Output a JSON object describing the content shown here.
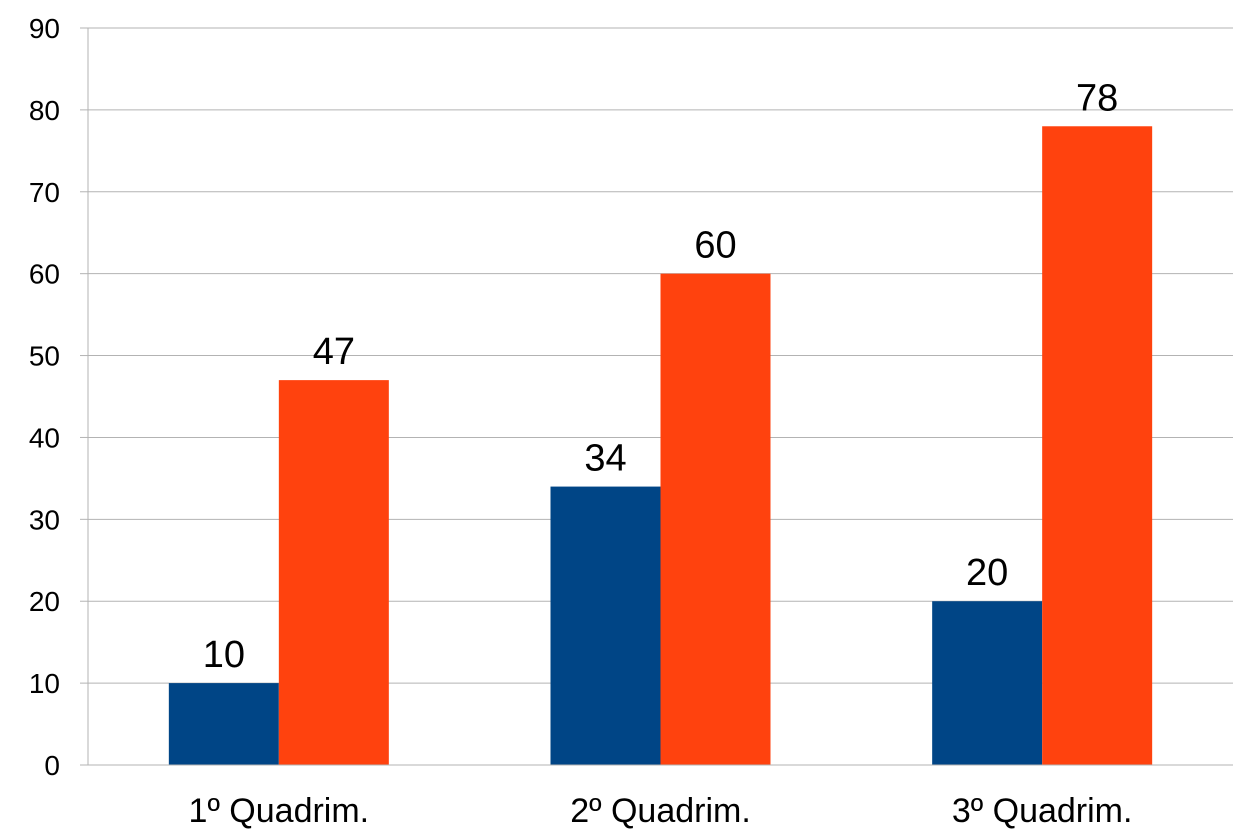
{
  "chart_data": {
    "type": "bar",
    "categories": [
      "1º Quadrim.",
      "2º Quadrim.",
      "3º Quadrim."
    ],
    "series": [
      {
        "values": [
          10,
          34,
          20
        ],
        "color": "#004586"
      },
      {
        "values": [
          47,
          60,
          78
        ],
        "color": "#ff420e"
      }
    ],
    "ylim": [
      0,
      90
    ],
    "yticks": [
      0,
      10,
      20,
      30,
      40,
      50,
      60,
      70,
      80,
      90
    ],
    "grid": true,
    "data_labels": true,
    "title": "",
    "xlabel": "",
    "ylabel": ""
  }
}
